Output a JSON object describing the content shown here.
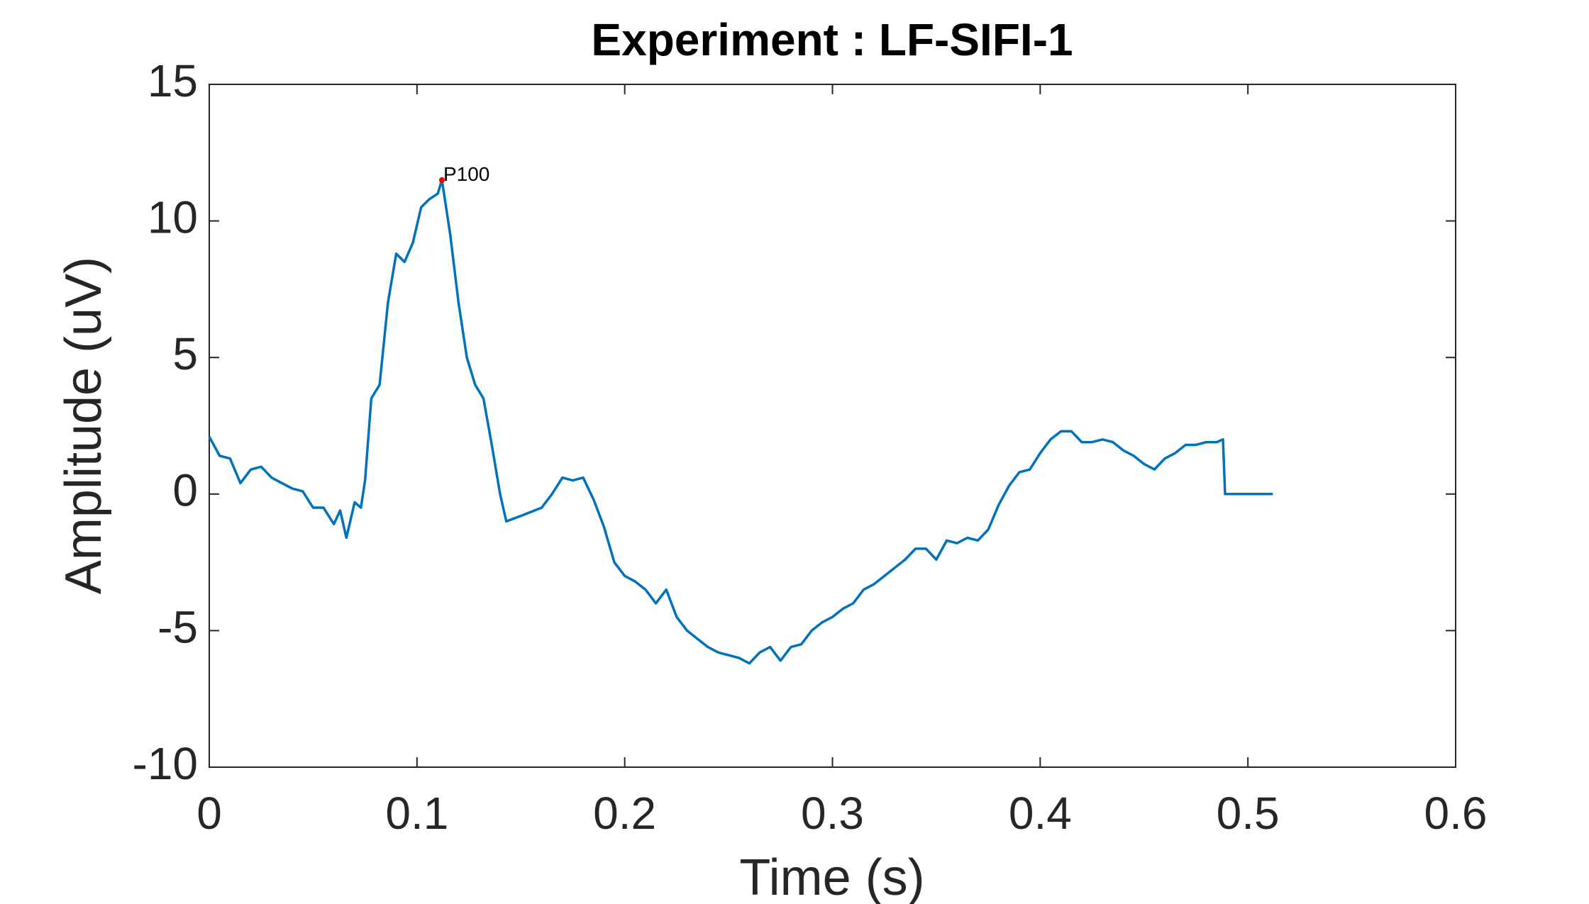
{
  "chart_data": {
    "type": "line",
    "title": "Experiment : LF-SIFI-1",
    "xlabel": "Time (s)",
    "ylabel": "Amplitude (uV)",
    "xlim": [
      0,
      0.6
    ],
    "xticks": [
      0,
      0.1,
      0.2,
      0.3,
      0.4,
      0.5,
      0.6
    ],
    "ylim": [
      -10,
      15
    ],
    "yticks": [
      -10,
      -5,
      0,
      5,
      10,
      15
    ],
    "grid": false,
    "x": [
      0,
      0.005,
      0.01,
      0.015,
      0.02,
      0.025,
      0.03,
      0.035,
      0.04,
      0.045,
      0.05,
      0.055,
      0.06,
      0.063,
      0.066,
      0.07,
      0.073,
      0.075,
      0.078,
      0.082,
      0.086,
      0.09,
      0.094,
      0.098,
      0.102,
      0.106,
      0.11,
      0.112,
      0.116,
      0.12,
      0.124,
      0.128,
      0.132,
      0.136,
      0.14,
      0.143,
      0.15,
      0.16,
      0.165,
      0.17,
      0.175,
      0.18,
      0.185,
      0.19,
      0.195,
      0.2,
      0.205,
      0.21,
      0.215,
      0.22,
      0.225,
      0.23,
      0.235,
      0.24,
      0.245,
      0.25,
      0.255,
      0.26,
      0.265,
      0.27,
      0.275,
      0.28,
      0.285,
      0.29,
      0.295,
      0.3,
      0.305,
      0.31,
      0.315,
      0.32,
      0.325,
      0.33,
      0.335,
      0.34,
      0.345,
      0.35,
      0.355,
      0.36,
      0.365,
      0.37,
      0.375,
      0.38,
      0.385,
      0.39,
      0.395,
      0.4,
      0.405,
      0.41,
      0.415,
      0.42,
      0.425,
      0.43,
      0.435,
      0.44,
      0.445,
      0.45,
      0.455,
      0.46,
      0.465,
      0.47,
      0.475,
      0.48,
      0.485,
      0.488,
      0.489,
      0.5,
      0.512
    ],
    "series": [
      {
        "color": "#0072bd",
        "values": [
          2.1,
          1.4,
          1.3,
          0.4,
          0.9,
          1.0,
          0.6,
          0.4,
          0.2,
          0.1,
          -0.5,
          -0.5,
          -1.1,
          -0.6,
          -1.6,
          -0.3,
          -0.5,
          0.5,
          3.5,
          4.0,
          7.0,
          8.8,
          8.5,
          9.2,
          10.5,
          10.8,
          11.0,
          11.5,
          9.5,
          7.0,
          5.0,
          4.0,
          3.5,
          1.8,
          0.0,
          -1.0,
          -0.8,
          -0.5,
          0.0,
          0.6,
          0.5,
          0.6,
          -0.2,
          -1.2,
          -2.5,
          -3.0,
          -3.2,
          -3.5,
          -4.0,
          -3.5,
          -4.5,
          -5.0,
          -5.3,
          -5.6,
          -5.8,
          -5.9,
          -6.0,
          -6.2,
          -5.8,
          -5.6,
          -6.1,
          -5.6,
          -5.5,
          -5.0,
          -4.7,
          -4.5,
          -4.2,
          -4.0,
          -3.5,
          -3.3,
          -3.0,
          -2.7,
          -2.4,
          -2.0,
          -2.0,
          -2.4,
          -1.7,
          -1.8,
          -1.6,
          -1.7,
          -1.3,
          -0.4,
          0.3,
          0.8,
          0.9,
          1.5,
          2.0,
          2.3,
          2.3,
          1.9,
          1.9,
          2.0,
          1.9,
          1.6,
          1.4,
          1.1,
          0.9,
          1.3,
          1.5,
          1.8,
          1.8,
          1.9,
          1.9,
          2.0,
          0.0,
          0,
          0
        ]
      }
    ],
    "annotations": [
      {
        "text": "P100",
        "x": 0.112,
        "y": 11.5,
        "color": "#ff0000"
      }
    ]
  }
}
